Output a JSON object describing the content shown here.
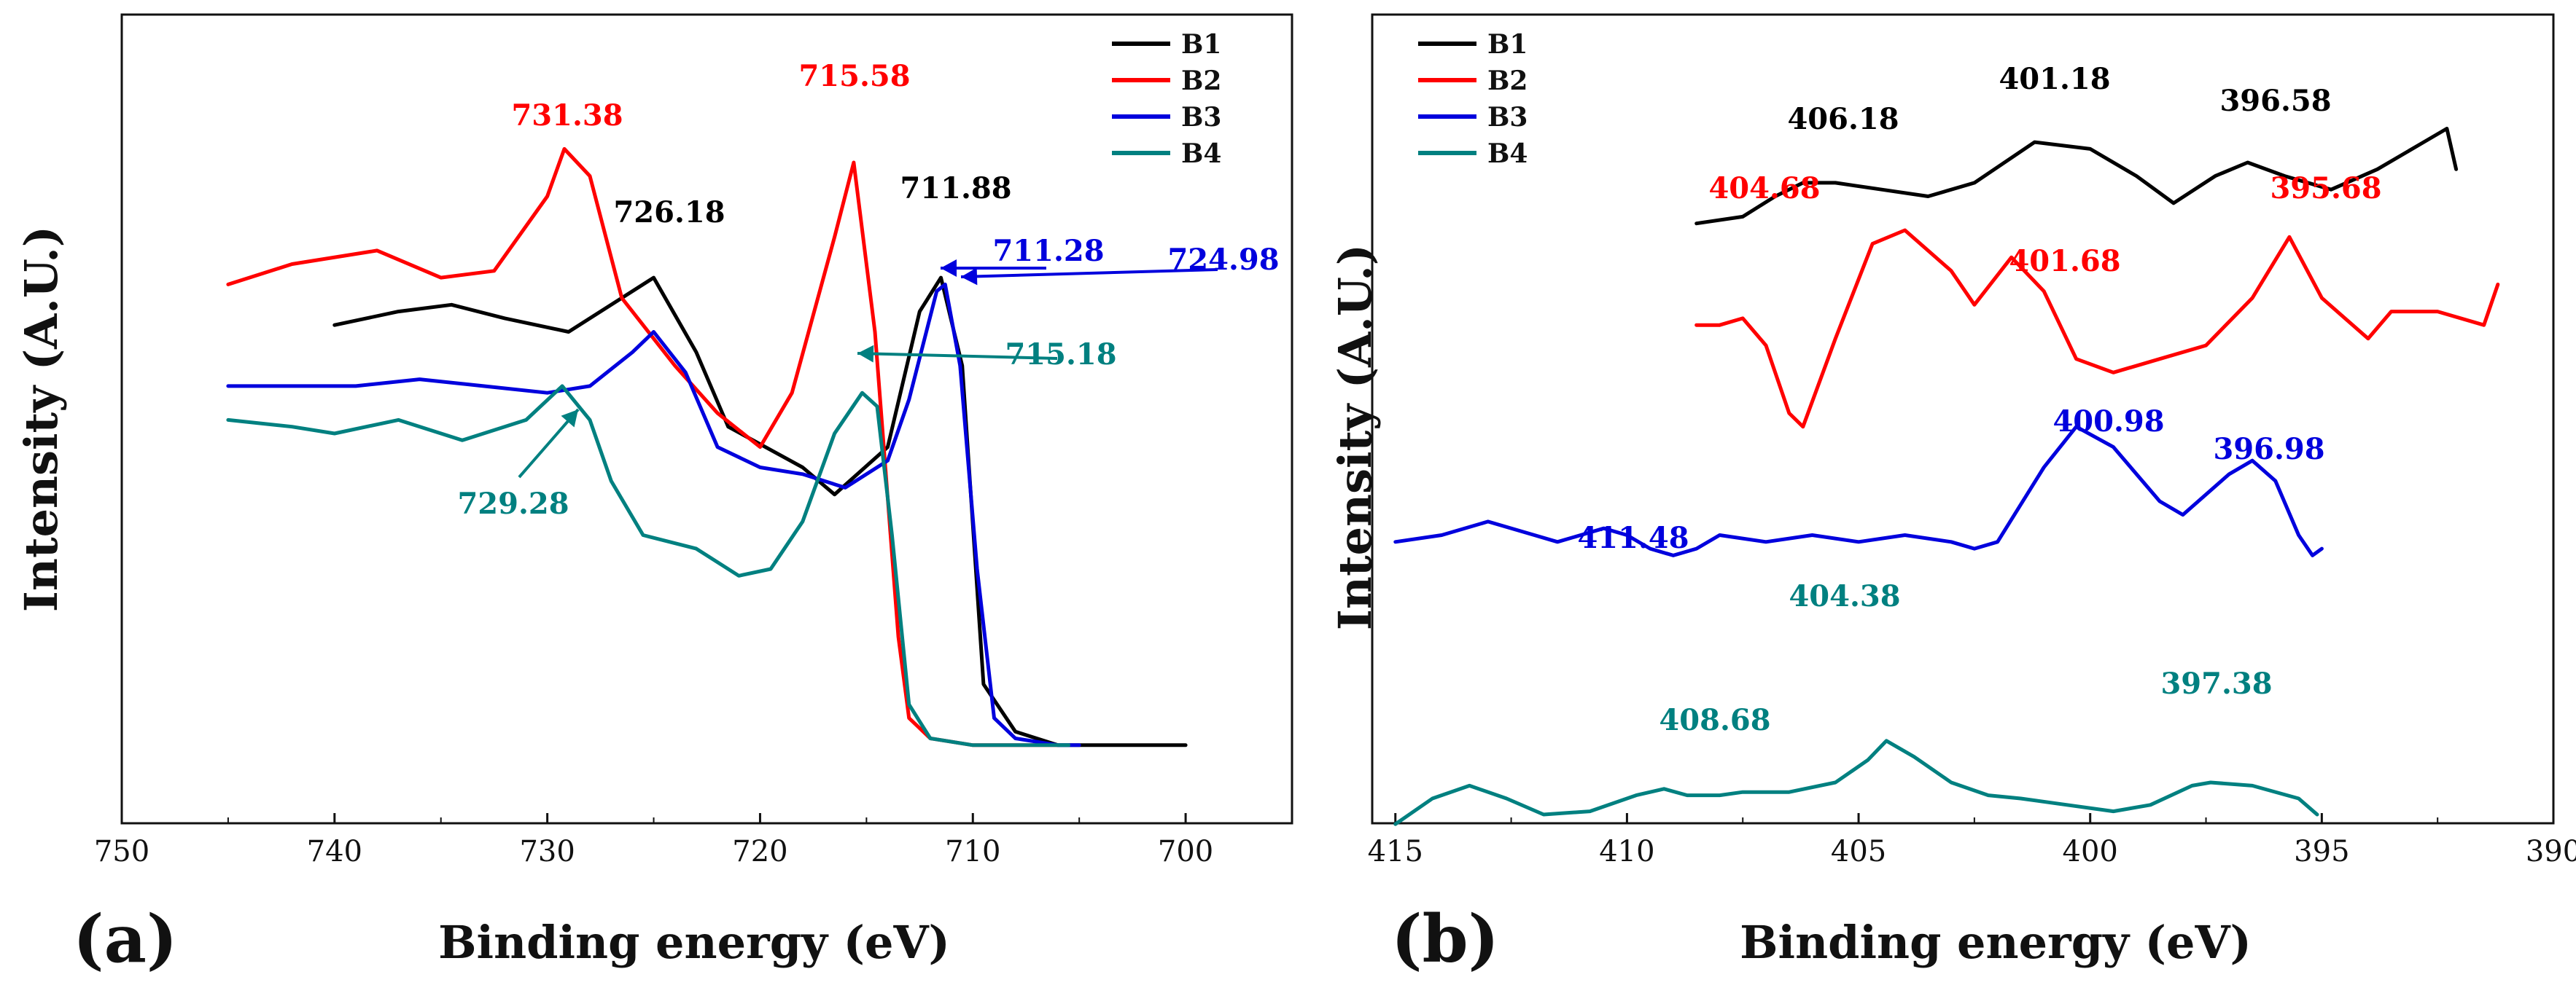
{
  "colors": {
    "B1": "#000000",
    "B2": "#ff0000",
    "B3": "#0000dd",
    "B4": "#008080"
  },
  "chart_data": [
    {
      "type": "line",
      "panel_label": "(a)",
      "xlabel": "Binding energy (eV)",
      "ylabel": "Intensity (A.U.)",
      "xlim": [
        750,
        695
      ],
      "xticks": [
        750,
        740,
        730,
        720,
        710,
        700
      ],
      "xtick_labels": [
        "750",
        "740",
        "730",
        "720",
        "710",
        "700"
      ],
      "ylim": [
        0,
        100
      ],
      "legend": [
        "B1",
        "B2",
        "B3",
        "B4"
      ],
      "legend_position": "top-right",
      "series": [
        {
          "name": "B1",
          "x": [
            740,
            737,
            734.5,
            732,
            729,
            726.5,
            725,
            723,
            721.5,
            718,
            716.5,
            714,
            712.5,
            711.5,
            710.5,
            709.5,
            708,
            706,
            703,
            700
          ],
          "y": [
            66,
            68,
            69,
            67,
            65,
            70,
            73,
            62,
            51,
            45,
            41,
            48,
            68,
            73,
            60,
            13,
            6,
            4,
            4,
            4
          ]
        },
        {
          "name": "B2",
          "x": [
            745,
            742,
            738,
            735,
            732.5,
            730,
            729.2,
            728,
            726.5,
            724,
            722,
            720,
            718.5,
            716.5,
            715.6,
            714.6,
            713.5,
            713,
            712,
            710,
            708,
            706
          ],
          "y": [
            72,
            75,
            77,
            73,
            74,
            85,
            92,
            88,
            70,
            60,
            53,
            48,
            56,
            79,
            90,
            65,
            20,
            8,
            5,
            4,
            4,
            4
          ]
        },
        {
          "name": "B3",
          "x": [
            745,
            742,
            739,
            736,
            733,
            730,
            728,
            726,
            725,
            723.5,
            722,
            720,
            718,
            716,
            714,
            713,
            711.7,
            711.3,
            710.6,
            709.8,
            709,
            708,
            706,
            705
          ],
          "y": [
            57,
            57,
            57,
            58,
            57,
            56,
            57,
            62,
            65,
            59,
            48,
            45,
            44,
            42,
            46,
            55,
            71,
            72,
            60,
            30,
            8,
            5,
            4,
            4
          ]
        },
        {
          "name": "B4",
          "x": [
            745,
            742,
            740,
            737,
            734,
            731,
            729.3,
            728,
            727,
            725.5,
            723,
            721,
            719.5,
            718,
            716.5,
            715.2,
            714.5,
            713.8,
            713,
            712,
            710,
            708,
            705.5
          ],
          "y": [
            52,
            51,
            50,
            52,
            49,
            52,
            57,
            52,
            43,
            35,
            33,
            29,
            30,
            37,
            50,
            56,
            54,
            35,
            10,
            5,
            4,
            4,
            4
          ]
        }
      ],
      "annotations": [
        {
          "text": "731.38",
          "series": "B2"
        },
        {
          "text": "715.58",
          "series": "B2"
        },
        {
          "text": "726.18",
          "series": "B1"
        },
        {
          "text": "711.88",
          "series": "B1"
        },
        {
          "text": "724.98",
          "series": "B3"
        },
        {
          "text": "711.28",
          "series": "B3"
        },
        {
          "text": "715.18",
          "series": "B4"
        },
        {
          "text": "729.28",
          "series": "B4"
        }
      ]
    },
    {
      "type": "line",
      "panel_label": "(b)",
      "xlabel": "Binding energy (eV)",
      "ylabel": "Intensity (A.U.)",
      "xlim": [
        415.5,
        390
      ],
      "xticks": [
        415,
        410,
        405,
        400,
        395,
        390
      ],
      "xtick_labels": [
        "415",
        "410",
        "405",
        "400",
        "395",
        "390"
      ],
      "ylim": [
        0,
        100
      ],
      "legend": [
        "B1",
        "B2",
        "B3",
        "B4"
      ],
      "legend_position": "top-left",
      "series": [
        {
          "name": "B1",
          "x": [
            408.5,
            407.5,
            406.8,
            406.2,
            405.5,
            404.5,
            403.5,
            402.5,
            401.2,
            400,
            399,
            398.2,
            397.3,
            396.6,
            395.8,
            394.8,
            393.8,
            392.8,
            392.3,
            392.1
          ],
          "y": [
            81,
            82,
            85,
            87,
            87,
            86,
            85,
            87,
            93,
            92,
            88,
            84,
            88,
            90,
            88,
            86,
            89,
            93,
            95,
            89
          ]
        },
        {
          "name": "B2",
          "x": [
            408.5,
            408,
            407.5,
            407,
            406.5,
            406.2,
            405.5,
            404.7,
            404,
            403,
            402.5,
            401.7,
            401,
            400.3,
            399.5,
            398.5,
            397.5,
            396.5,
            395.7,
            395,
            394.5,
            394,
            393.5,
            392.5,
            391.5,
            391.2
          ],
          "y": [
            66,
            66,
            67,
            63,
            53,
            51,
            64,
            78,
            80,
            74,
            69,
            76,
            71,
            61,
            59,
            61,
            63,
            70,
            79,
            70,
            67,
            64,
            68,
            68,
            66,
            72
          ]
        },
        {
          "name": "B3",
          "x": [
            415,
            414,
            413,
            412,
            411.5,
            411,
            410.5,
            410,
            409.5,
            409,
            408.5,
            408,
            407,
            406,
            405,
            404,
            403,
            402.5,
            402,
            401,
            400.3,
            399.5,
            398.5,
            398,
            397,
            396.5,
            396,
            395.5,
            395.2,
            395
          ],
          "y": [
            34,
            35,
            37,
            35,
            34,
            35,
            36,
            35,
            33,
            32,
            33,
            35,
            34,
            35,
            34,
            35,
            34,
            33,
            34,
            45,
            51,
            48,
            40,
            38,
            44,
            46,
            43,
            35,
            32,
            33
          ]
        },
        {
          "name": "B4",
          "x": [
            415,
            414.2,
            413.4,
            412.6,
            411.8,
            410.8,
            409.8,
            409.2,
            408.7,
            408,
            407.5,
            406.5,
            405.5,
            404.8,
            404.4,
            403.8,
            403,
            402.2,
            401.5,
            400.5,
            399.5,
            398.7,
            397.8,
            397.4,
            396.5,
            395.5,
            395.1
          ],
          "y": [
            2,
            10,
            14,
            10,
            5,
            6,
            11,
            13,
            11,
            11,
            12,
            12,
            15,
            22,
            28,
            23,
            15,
            11,
            10,
            8,
            6,
            8,
            14,
            15,
            14,
            10,
            5
          ]
        }
      ],
      "annotations": [
        {
          "text": "406.18",
          "series": "B1"
        },
        {
          "text": "401.18",
          "series": "B1"
        },
        {
          "text": "396.58",
          "series": "B1"
        },
        {
          "text": "404.68",
          "series": "B2"
        },
        {
          "text": "401.68",
          "series": "B2"
        },
        {
          "text": "395.68",
          "series": "B2"
        },
        {
          "text": "411.48",
          "series": "B3"
        },
        {
          "text": "400.98",
          "series": "B3"
        },
        {
          "text": "396.98",
          "series": "B3"
        },
        {
          "text": "404.38",
          "series": "B4"
        },
        {
          "text": "408.68",
          "series": "B4"
        },
        {
          "text": "397.38",
          "series": "B4"
        }
      ]
    }
  ]
}
